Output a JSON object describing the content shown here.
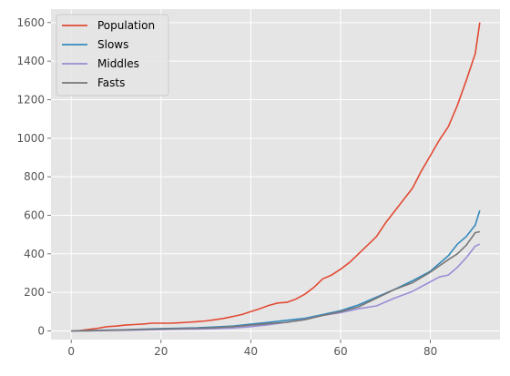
{
  "chart_data": {
    "type": "line",
    "grid": true,
    "legend_position": "top-left",
    "xlim": [
      -4.5,
      95.5
    ],
    "ylim": [
      -45,
      1670
    ],
    "x_ticks": [
      0,
      20,
      40,
      60,
      80
    ],
    "y_ticks": [
      0,
      200,
      400,
      600,
      800,
      1000,
      1200,
      1400,
      1600
    ],
    "series": [
      {
        "name": "Population",
        "color": "#E24A33",
        "points": [
          [
            0,
            0
          ],
          [
            2,
            2
          ],
          [
            4,
            8
          ],
          [
            6,
            14
          ],
          [
            8,
            22
          ],
          [
            10,
            25
          ],
          [
            12,
            30
          ],
          [
            14,
            33
          ],
          [
            16,
            36
          ],
          [
            18,
            40
          ],
          [
            20,
            40
          ],
          [
            22,
            40
          ],
          [
            24,
            42
          ],
          [
            26,
            45
          ],
          [
            28,
            48
          ],
          [
            30,
            52
          ],
          [
            32,
            58
          ],
          [
            34,
            65
          ],
          [
            36,
            75
          ],
          [
            38,
            85
          ],
          [
            40,
            100
          ],
          [
            42,
            115
          ],
          [
            44,
            132
          ],
          [
            46,
            145
          ],
          [
            48,
            148
          ],
          [
            50,
            165
          ],
          [
            52,
            190
          ],
          [
            54,
            225
          ],
          [
            56,
            270
          ],
          [
            58,
            290
          ],
          [
            60,
            320
          ],
          [
            62,
            355
          ],
          [
            64,
            400
          ],
          [
            66,
            445
          ],
          [
            68,
            490
          ],
          [
            70,
            560
          ],
          [
            72,
            620
          ],
          [
            74,
            680
          ],
          [
            76,
            740
          ],
          [
            78,
            830
          ],
          [
            80,
            910
          ],
          [
            82,
            990
          ],
          [
            84,
            1060
          ],
          [
            86,
            1170
          ],
          [
            88,
            1300
          ],
          [
            90,
            1440
          ],
          [
            91,
            1600
          ]
        ]
      },
      {
        "name": "Slows",
        "color": "#348ABD",
        "points": [
          [
            0,
            0
          ],
          [
            4,
            2
          ],
          [
            8,
            4
          ],
          [
            12,
            6
          ],
          [
            16,
            9
          ],
          [
            20,
            12
          ],
          [
            24,
            14
          ],
          [
            28,
            16
          ],
          [
            32,
            20
          ],
          [
            36,
            25
          ],
          [
            40,
            35
          ],
          [
            44,
            45
          ],
          [
            48,
            55
          ],
          [
            52,
            65
          ],
          [
            56,
            85
          ],
          [
            60,
            105
          ],
          [
            64,
            135
          ],
          [
            68,
            175
          ],
          [
            72,
            215
          ],
          [
            76,
            260
          ],
          [
            80,
            310
          ],
          [
            84,
            390
          ],
          [
            86,
            450
          ],
          [
            88,
            490
          ],
          [
            90,
            550
          ],
          [
            91,
            625
          ]
        ]
      },
      {
        "name": "Middles",
        "color": "#988ED5",
        "points": [
          [
            0,
            0
          ],
          [
            4,
            1
          ],
          [
            8,
            2
          ],
          [
            12,
            3
          ],
          [
            16,
            5
          ],
          [
            20,
            7
          ],
          [
            24,
            9
          ],
          [
            28,
            10
          ],
          [
            32,
            12
          ],
          [
            36,
            15
          ],
          [
            40,
            22
          ],
          [
            44,
            32
          ],
          [
            48,
            45
          ],
          [
            52,
            60
          ],
          [
            56,
            80
          ],
          [
            60,
            95
          ],
          [
            64,
            115
          ],
          [
            68,
            130
          ],
          [
            72,
            170
          ],
          [
            76,
            205
          ],
          [
            80,
            255
          ],
          [
            82,
            280
          ],
          [
            84,
            290
          ],
          [
            86,
            330
          ],
          [
            88,
            380
          ],
          [
            90,
            440
          ],
          [
            91,
            450
          ]
        ]
      },
      {
        "name": "Fasts",
        "color": "#777777",
        "points": [
          [
            0,
            0
          ],
          [
            4,
            1
          ],
          [
            8,
            3
          ],
          [
            12,
            5
          ],
          [
            16,
            8
          ],
          [
            20,
            10
          ],
          [
            24,
            12
          ],
          [
            28,
            14
          ],
          [
            32,
            17
          ],
          [
            36,
            22
          ],
          [
            40,
            30
          ],
          [
            44,
            38
          ],
          [
            48,
            45
          ],
          [
            52,
            58
          ],
          [
            56,
            80
          ],
          [
            60,
            100
          ],
          [
            64,
            125
          ],
          [
            68,
            170
          ],
          [
            72,
            215
          ],
          [
            76,
            250
          ],
          [
            80,
            305
          ],
          [
            84,
            370
          ],
          [
            86,
            400
          ],
          [
            88,
            445
          ],
          [
            90,
            510
          ],
          [
            91,
            515
          ]
        ]
      }
    ]
  }
}
